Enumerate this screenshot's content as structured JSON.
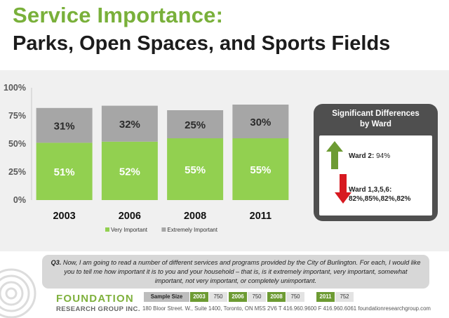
{
  "header": {
    "title_line1": "Service Importance:",
    "title_line2": "Parks, Open Spaces, and Sports Fields"
  },
  "chart_data": {
    "type": "bar",
    "stacked": true,
    "categories": [
      "2003",
      "2006",
      "2008",
      "2011"
    ],
    "series": [
      {
        "name": "Very Important",
        "values": [
          51,
          52,
          55,
          55
        ],
        "color": "#92d050"
      },
      {
        "name": "Extremely Important",
        "values": [
          31,
          32,
          25,
          30
        ],
        "color": "#a6a6a6"
      }
    ],
    "data_labels": [
      [
        "51%",
        "52%",
        "55%",
        "55%"
      ],
      [
        "31%",
        "32%",
        "25%",
        "30%"
      ]
    ],
    "ylim": [
      0,
      100
    ],
    "yticks": [
      0,
      25,
      50,
      75,
      100
    ],
    "ytick_labels": [
      "0%",
      "25%",
      "50%",
      "75%",
      "100%"
    ],
    "grid": false,
    "legend": "bottom"
  },
  "significant_differences": {
    "title_line1": "Significant Differences",
    "title_line2": "by Ward",
    "up_label": "Ward 2: ",
    "up_value": "94%",
    "down_label": "Ward 1,3,5,6:",
    "down_values": "82%,85%,82%,82%",
    "up_color": "#6d9b33",
    "down_color": "#d71920"
  },
  "question": {
    "number": "Q3.",
    "text": "Now, I am going to read a number of different services and programs provided by the City of Burlington. For each, I would like you to tell me how important it is to you and your household – that is, is it extremely important, very important, somewhat important, not very important, or completely unimportant."
  },
  "footer": {
    "logo_line1": "FOUNDATION",
    "logo_line2": "RESEARCH GROUP INC.",
    "sample_size_label": "Sample Size",
    "sample_sizes": [
      {
        "year": "2003",
        "n": "750"
      },
      {
        "year": "2006",
        "n": "750"
      },
      {
        "year": "2008",
        "n": "750"
      },
      {
        "year": "2011",
        "n": "752"
      }
    ],
    "address": "180 Bloor Street. W., Suite 1400, Toronto, ON  M5S 2V6   T 416.960.9600   F 416.960.6061  foundationresearchgroup.com"
  }
}
